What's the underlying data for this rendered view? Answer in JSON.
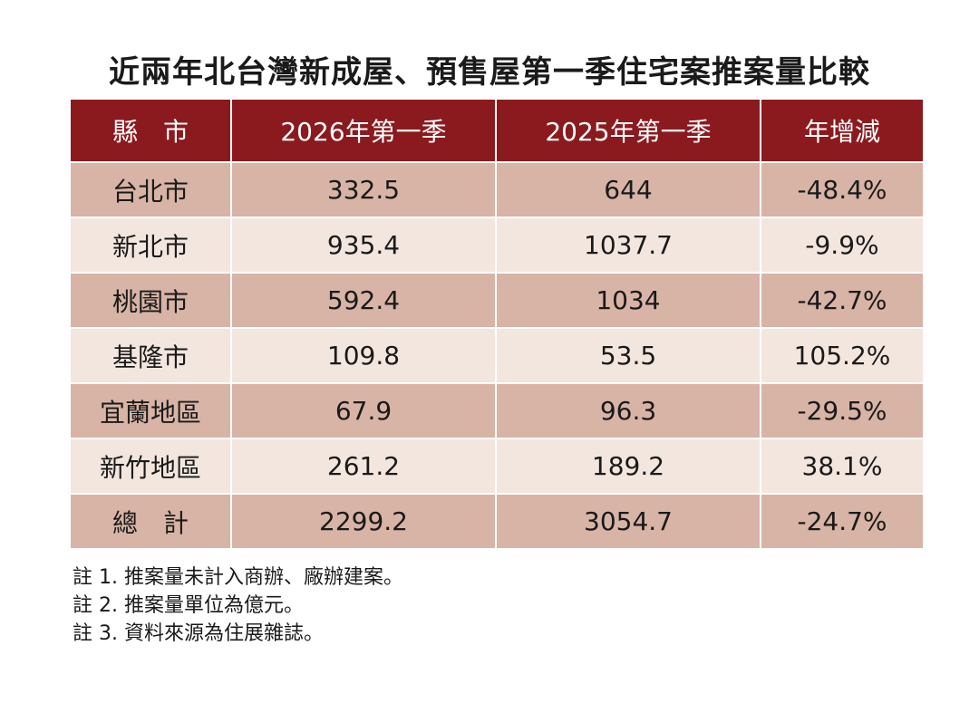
{
  "title": "近兩年北台灣新成屋、預售屋第一季住宅案推案量比較",
  "colors": {
    "header_bg": "#8b1a1e",
    "row_dark": "#d8b4a6",
    "row_light": "#f3e6df"
  },
  "chart_data": {
    "type": "table",
    "columns": [
      "縣　市",
      "2026年第一季",
      "2025年第一季",
      "年增減"
    ],
    "rows": [
      [
        "台北市",
        "332.5",
        "644",
        "-48.4%"
      ],
      [
        "新北市",
        "935.4",
        "1037.7",
        "-9.9%"
      ],
      [
        "桃園市",
        "592.4",
        "1034",
        "-42.7%"
      ],
      [
        "基隆市",
        "109.8",
        "53.5",
        "105.2%"
      ],
      [
        "宜蘭地區",
        "67.9",
        "96.3",
        "-29.5%"
      ],
      [
        "新竹地區",
        "261.2",
        "189.2",
        "38.1%"
      ],
      [
        "總　計",
        "2299.2",
        "3054.7",
        "-24.7%"
      ]
    ]
  },
  "notes": [
    "註 1. 推案量未計入商辦、廠辦建案。",
    "註 2. 推案量單位為億元。",
    "註 3. 資料來源為住展雜誌。"
  ]
}
